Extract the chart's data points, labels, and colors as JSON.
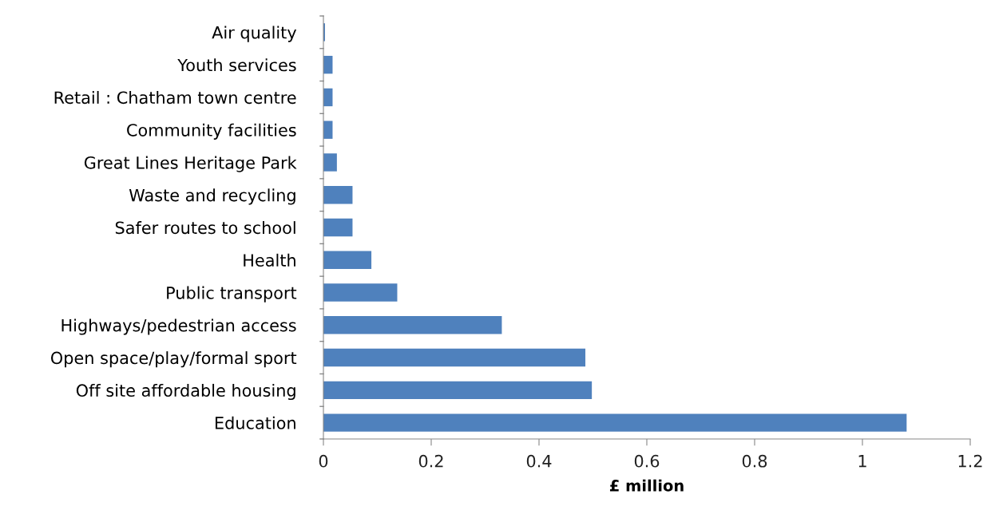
{
  "chart_data": {
    "type": "bar",
    "orientation": "horizontal",
    "xlabel": "£ million",
    "categories": [
      "Air quality",
      "Youth services",
      "Retail : Chatham town centre",
      "Community facilities",
      "Great Lines Heritage Park",
      "Waste and recycling",
      "Safer routes to school",
      "Health",
      "Public transport",
      "Highways/pedestrian access",
      "Open space/play/formal sport",
      "Off site affordable housing",
      "Education"
    ],
    "values": [
      0.003,
      0.017,
      0.017,
      0.017,
      0.025,
      0.054,
      0.054,
      0.089,
      0.137,
      0.331,
      0.486,
      0.498,
      1.082
    ],
    "color": "#4f81bd",
    "xlim": [
      0,
      1.2
    ],
    "xticks": [
      0,
      0.2,
      0.4,
      0.6,
      0.8,
      1,
      1.2
    ],
    "grid": false,
    "legend": false
  }
}
